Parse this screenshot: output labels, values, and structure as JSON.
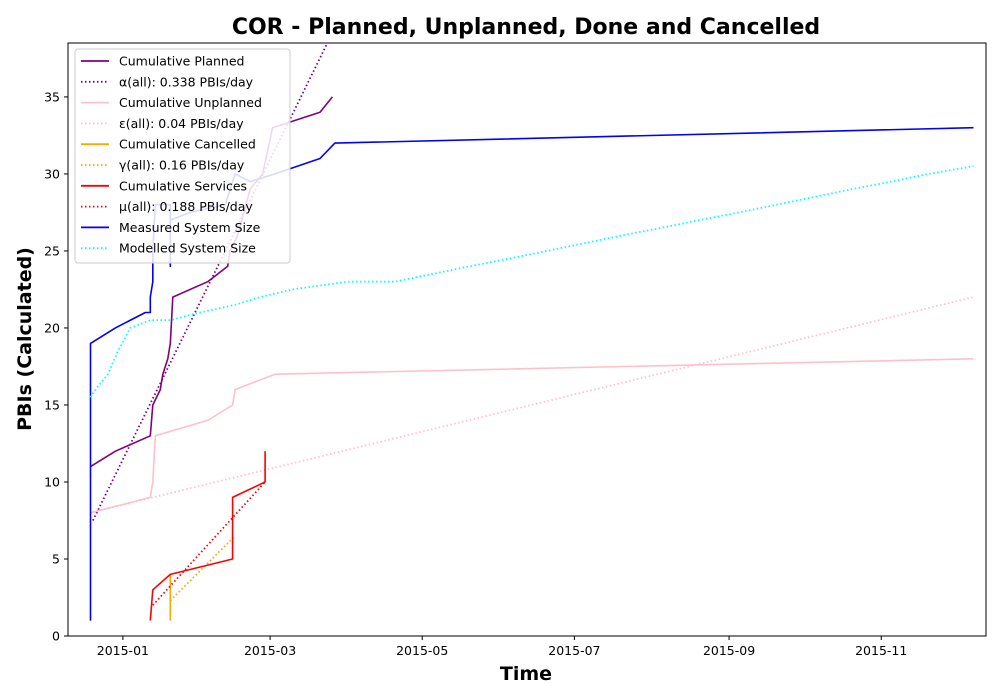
{
  "chart_data": {
    "type": "line",
    "title": "COR - Planned, Unplanned, Done  and Cancelled",
    "xlabel": "Time",
    "ylabel": "PBIs (Calculated)",
    "x_domain": [
      "2014-12-10",
      "2015-12-13"
    ],
    "ylim": [
      0,
      38.5
    ],
    "x_ticks": [
      "2015-01",
      "2015-03",
      "2015-05",
      "2015-07",
      "2015-09",
      "2015-11"
    ],
    "y_ticks": [
      0,
      5,
      10,
      15,
      20,
      25,
      30,
      35
    ],
    "grid": false,
    "legend_position": "upper-left",
    "series": [
      {
        "name": "Cumulative Planned",
        "color": "#800080",
        "style": "solid",
        "points": [
          [
            "2014-12-19",
            11
          ],
          [
            "2014-12-29",
            12
          ],
          [
            "2015-01-12",
            13
          ],
          [
            "2015-01-13",
            15
          ],
          [
            "2015-01-16",
            16
          ],
          [
            "2015-01-17",
            17
          ],
          [
            "2015-01-19",
            18
          ],
          [
            "2015-01-20",
            19
          ],
          [
            "2015-01-21",
            22
          ],
          [
            "2015-02-04",
            23
          ],
          [
            "2015-02-12",
            24
          ],
          [
            "2015-02-13",
            25
          ],
          [
            "2015-02-16",
            26
          ],
          [
            "2015-02-21",
            29
          ],
          [
            "2015-02-26",
            30
          ],
          [
            "2015-03-02",
            33
          ],
          [
            "2015-03-21",
            34
          ],
          [
            "2015-03-26",
            35
          ]
        ]
      },
      {
        "name": "α(all): 0.338 PBIs/day",
        "color": "#800080",
        "style": "dotted",
        "points": [
          [
            "2014-12-20",
            7.5
          ],
          [
            "2015-03-24",
            38.5
          ]
        ]
      },
      {
        "name": "Cumulative Unplanned",
        "color": "#ffc0cb",
        "style": "solid",
        "points": [
          [
            "2014-12-19",
            8
          ],
          [
            "2015-01-12",
            9
          ],
          [
            "2015-01-13",
            10
          ],
          [
            "2015-01-14",
            13
          ],
          [
            "2015-02-04",
            14
          ],
          [
            "2015-02-14",
            15
          ],
          [
            "2015-02-15",
            16
          ],
          [
            "2015-03-03",
            17
          ],
          [
            "2015-12-08",
            18
          ]
        ]
      },
      {
        "name": "ε(all): 0.04 PBIs/day",
        "color": "#ffc0cb",
        "style": "dotted",
        "points": [
          [
            "2014-12-20",
            8.05
          ],
          [
            "2015-12-08",
            22
          ]
        ]
      },
      {
        "name": "Cumulative Cancelled",
        "color": "#ffa500",
        "style": "solid",
        "points": [
          [
            "2015-01-20",
            1
          ],
          [
            "2015-01-20",
            4
          ]
        ]
      },
      {
        "name": "γ(all): 0.16 PBIs/day",
        "color": "#ffa500",
        "style": "dotted",
        "points": [
          [
            "2015-01-20",
            2.3
          ],
          [
            "2015-02-15",
            6.5
          ]
        ]
      },
      {
        "name": "Cumulative Services",
        "color": "#ff0000",
        "style": "solid",
        "points": [
          [
            "2015-01-12",
            1
          ],
          [
            "2015-01-13",
            3
          ],
          [
            "2015-01-20",
            4
          ],
          [
            "2015-02-14",
            5
          ],
          [
            "2015-02-14",
            9
          ],
          [
            "2015-02-27",
            10
          ],
          [
            "2015-02-27",
            12
          ]
        ]
      },
      {
        "name": "μ(all): 0.188 PBIs/day",
        "color": "#ff0000",
        "style": "dotted",
        "points": [
          [
            "2015-01-13",
            2
          ],
          [
            "2015-02-27",
            10
          ]
        ]
      },
      {
        "name": "Measured System Size",
        "color": "#0000ff",
        "style": "solid",
        "points": [
          [
            "2014-12-19",
            1
          ],
          [
            "2014-12-19",
            19
          ],
          [
            "2014-12-29",
            20
          ],
          [
            "2015-01-10",
            21
          ],
          [
            "2015-01-12",
            21
          ],
          [
            "2015-01-12",
            22
          ],
          [
            "2015-01-13",
            23
          ],
          [
            "2015-01-13",
            25
          ],
          [
            "2015-01-14",
            28
          ],
          [
            "2015-01-20",
            28
          ],
          [
            "2015-01-20",
            24
          ],
          [
            "2015-01-20",
            27
          ],
          [
            "2015-01-28",
            27.5
          ],
          [
            "2015-02-11",
            28
          ],
          [
            "2015-02-15",
            30
          ],
          [
            "2015-02-21",
            29.5
          ],
          [
            "2015-03-03",
            30
          ],
          [
            "2015-03-21",
            31
          ],
          [
            "2015-03-27",
            32
          ],
          [
            "2015-12-08",
            33
          ]
        ]
      },
      {
        "name": "Modelled System Size",
        "color": "#00ffff",
        "style": "dotted",
        "points": [
          [
            "2014-12-19",
            15.5
          ],
          [
            "2014-12-21",
            16
          ],
          [
            "2014-12-26",
            17
          ],
          [
            "2014-12-30",
            18.5
          ],
          [
            "2015-01-04",
            20
          ],
          [
            "2015-01-12",
            20.5
          ],
          [
            "2015-01-20",
            20.5
          ],
          [
            "2015-02-01",
            21
          ],
          [
            "2015-02-15",
            21.5
          ],
          [
            "2015-02-25",
            22
          ],
          [
            "2015-03-10",
            22.5
          ],
          [
            "2015-04-01",
            23
          ],
          [
            "2015-04-20",
            23
          ],
          [
            "2015-05-05",
            23.5
          ],
          [
            "2015-05-20",
            24
          ],
          [
            "2015-06-05",
            24.5
          ],
          [
            "2015-06-20",
            25
          ],
          [
            "2015-07-05",
            25.5
          ],
          [
            "2015-07-20",
            26
          ],
          [
            "2015-08-05",
            26.5
          ],
          [
            "2015-08-20",
            27
          ],
          [
            "2015-09-05",
            27.5
          ],
          [
            "2015-09-20",
            28
          ],
          [
            "2015-10-05",
            28.5
          ],
          [
            "2015-10-20",
            29
          ],
          [
            "2015-11-05",
            29.5
          ],
          [
            "2015-11-20",
            30
          ],
          [
            "2015-12-08",
            30.5
          ]
        ]
      }
    ]
  }
}
